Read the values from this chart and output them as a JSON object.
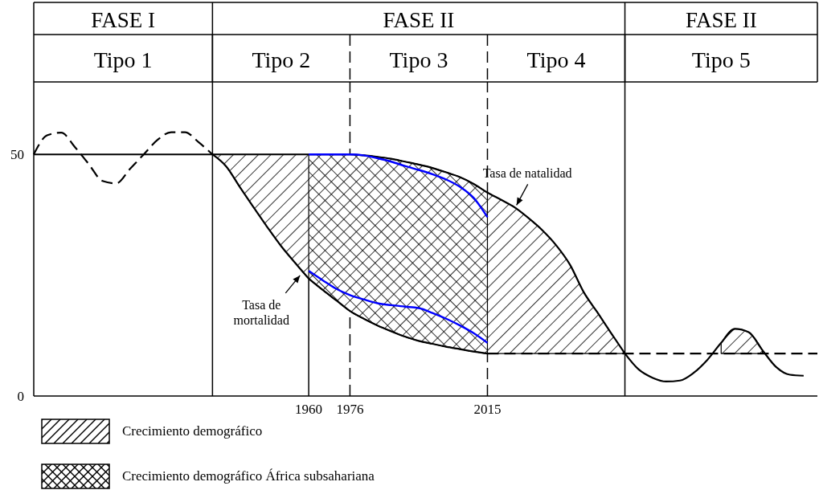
{
  "chart_data": {
    "type": "line",
    "annotations": [
      "FASE I",
      "FASE II",
      "FASE II",
      "Tipo 1",
      "Tipo 2",
      "Tipo 3",
      "Tipo 4",
      "Tipo 5",
      "Tasa de natalidad",
      "Tasa de mortalidad"
    ],
    "categories": [
      null,
      null,
      null,
      null,
      null,
      null,
      null,
      null,
      null,
      null,
      null,
      null,
      null,
      null,
      null,
      null,
      null,
      null,
      null,
      null,
      "1960",
      null,
      null,
      "1976",
      null,
      null,
      null,
      null,
      null,
      null,
      null,
      null,
      null,
      "2015",
      null,
      null,
      null,
      null,
      null,
      null,
      null,
      null,
      null,
      null,
      null,
      null,
      null,
      null,
      null,
      null,
      null,
      null,
      null,
      null,
      null,
      null,
      null,
      null
    ],
    "ylim": [
      0,
      65
    ],
    "yticks": [
      0,
      50
    ],
    "ref_lines": [
      {
        "axis": "x",
        "value": "1960",
        "line_style": "solid"
      },
      {
        "axis": "x",
        "value": "1976",
        "line_style": "dashed"
      },
      {
        "axis": "x",
        "value": "2015",
        "line_style": "dashed"
      }
    ],
    "legend": "bottom left",
    "series": [
      {
        "name": "Crecimiento demográfico",
        "color": "#000000",
        "line_style": "solid",
        "values": [
          null,
          null,
          null,
          null,
          null,
          null,
          null,
          null,
          null,
          null,
          null,
          null,
          null,
          50,
          50,
          50,
          50,
          50,
          50,
          50,
          50,
          50,
          50,
          50,
          49.8,
          49.5,
          49.1,
          48.5,
          47.9,
          47.2,
          46.3,
          45.3,
          43.9,
          42.1,
          40.6,
          39.0,
          36.8,
          34.3,
          31.2,
          27.2,
          21.5,
          17.3,
          13.0,
          8.8,
          null,
          null,
          null,
          null,
          null,
          null,
          null,
          null,
          null,
          null,
          null,
          null,
          null,
          null
        ],
        "upper": [
          null,
          null,
          null,
          null,
          null,
          null,
          null,
          null,
          null,
          null,
          null,
          null,
          null,
          50,
          50,
          50,
          50,
          50,
          50,
          50,
          50,
          50,
          50,
          50,
          49.8,
          49.5,
          49.1,
          48.5,
          47.9,
          47.2,
          46.3,
          45.3,
          43.9,
          42.1,
          40.6,
          39.0,
          36.8,
          34.3,
          31.2,
          27.2,
          21.5,
          17.3,
          13.0,
          8.8,
          null,
          null,
          null,
          null,
          null,
          null,
          null,
          null,
          null,
          null,
          null,
          null,
          null,
          null
        ],
        "lower": [
          null,
          null,
          null,
          null,
          null,
          null,
          null,
          null,
          null,
          null,
          null,
          null,
          null,
          50,
          47.5,
          43.2,
          39.0,
          34.9,
          31.0,
          27.6,
          24.3,
          22.0,
          19.8,
          17.6,
          16.0,
          14.6,
          13.4,
          12.3,
          11.4,
          10.8,
          10.2,
          9.7,
          9.2,
          8.8,
          8.8,
          8.8,
          8.8,
          8.8,
          8.8,
          8.8,
          8.8,
          8.8,
          8.8,
          8.8,
          null,
          null,
          null,
          null,
          null,
          null,
          null,
          null,
          null,
          null,
          null,
          null,
          null,
          null
        ]
      },
      {
        "name": "Crecimiento demográfico África subsahariana",
        "color": "#000000",
        "line_style": "solid",
        "values": [
          null,
          null,
          null,
          null,
          null,
          null,
          null,
          null,
          null,
          null,
          null,
          null,
          null,
          null,
          null,
          null,
          null,
          null,
          null,
          null,
          24.3,
          22.0,
          19.8,
          17.6,
          16.0,
          14.6,
          13.4,
          12.3,
          11.4,
          10.8,
          10.2,
          9.7,
          9.2,
          8.8,
          null,
          null,
          null,
          null,
          null,
          null,
          null,
          null,
          null,
          null,
          null,
          null,
          null,
          null,
          null,
          null,
          null,
          null,
          null,
          null,
          null,
          null,
          null,
          null
        ],
        "upper": [
          null,
          null,
          null,
          null,
          null,
          null,
          null,
          null,
          null,
          null,
          null,
          null,
          null,
          null,
          null,
          null,
          null,
          null,
          null,
          null,
          50,
          50,
          50,
          50,
          49.8,
          49.5,
          49.1,
          48.5,
          47.9,
          47.2,
          46.3,
          45.3,
          43.9,
          42.1,
          null,
          null,
          null,
          null,
          null,
          null,
          null,
          null,
          null,
          null,
          null,
          null,
          null,
          null,
          null,
          null,
          null,
          null,
          null,
          null,
          null,
          null,
          null,
          null
        ],
        "lower": [
          null,
          null,
          null,
          null,
          null,
          null,
          null,
          null,
          null,
          null,
          null,
          null,
          null,
          null,
          null,
          null,
          null,
          null,
          null,
          null,
          24.3,
          22.0,
          19.8,
          17.6,
          16.0,
          14.6,
          13.4,
          12.3,
          11.4,
          10.8,
          10.2,
          9.7,
          9.2,
          8.8,
          null,
          null,
          null,
          null,
          null,
          null,
          null,
          null,
          null,
          null,
          null,
          null,
          null,
          null,
          null,
          null,
          null,
          null,
          null,
          null,
          null,
          null,
          null,
          null
        ]
      },
      {
        "color": "#000000",
        "line_style": "solid",
        "values": [
          50,
          50,
          50,
          50,
          50,
          50,
          50,
          50,
          50,
          50,
          50,
          50,
          50,
          50,
          null,
          null,
          null,
          null,
          null,
          null,
          null,
          null,
          null,
          null,
          null,
          null,
          null,
          null,
          null,
          null,
          null,
          null,
          null,
          null,
          null,
          null,
          null,
          null,
          null,
          null,
          null,
          null,
          null,
          null,
          null,
          null,
          null,
          null,
          null,
          null,
          null,
          null,
          null,
          null,
          null,
          null,
          null,
          null
        ]
      },
      {
        "color": "#000000",
        "line_style": "dashed",
        "values": [
          null,
          null,
          null,
          null,
          null,
          null,
          null,
          null,
          null,
          null,
          null,
          null,
          null,
          null,
          null,
          null,
          null,
          null,
          null,
          null,
          null,
          null,
          null,
          null,
          null,
          null,
          null,
          null,
          null,
          null,
          null,
          null,
          null,
          8.8,
          8.8,
          8.8,
          8.8,
          8.8,
          8.8,
          8.8,
          8.8,
          8.8,
          8.8,
          8.8,
          8.8,
          8.8,
          8.8,
          8.8,
          8.8,
          8.8,
          8.8,
          8.8,
          8.8,
          8.8,
          8.8,
          8.8,
          8.8,
          8.8
        ]
      },
      {
        "color": "#000000",
        "line_style": "dashed",
        "values": [
          50,
          54.0,
          54.5,
          51.5,
          48,
          44.5,
          44,
          47,
          50,
          53,
          54.6,
          54.6,
          52.5,
          50,
          null,
          null,
          null,
          null,
          null,
          null,
          null,
          null,
          null,
          null,
          null,
          null,
          null,
          null,
          null,
          null,
          null,
          null,
          null,
          null,
          null,
          null,
          null,
          null,
          null,
          null,
          null,
          null,
          null,
          null,
          null,
          null,
          null,
          null,
          null,
          null,
          null,
          null,
          null,
          null,
          null,
          null,
          null,
          null
        ]
      },
      {
        "color": "#000000",
        "line_style": "solid",
        "values": [
          null,
          null,
          null,
          null,
          null,
          null,
          null,
          null,
          null,
          null,
          null,
          null,
          null,
          50,
          47.5,
          43.2,
          39.0,
          34.9,
          31.0,
          27.6,
          24.3,
          null,
          null,
          null,
          null,
          null,
          null,
          null,
          null,
          null,
          null,
          null,
          null,
          null,
          null,
          null,
          null,
          null,
          null,
          null,
          null,
          null,
          null,
          null,
          null,
          null,
          null,
          null,
          null,
          null,
          null,
          null,
          null,
          null,
          null,
          null,
          null,
          null
        ]
      },
      {
        "color": "#000000",
        "line_style": "solid",
        "values": [
          null,
          null,
          null,
          null,
          null,
          null,
          null,
          null,
          null,
          null,
          null,
          null,
          null,
          null,
          null,
          null,
          null,
          null,
          null,
          null,
          null,
          null,
          null,
          null,
          null,
          null,
          null,
          null,
          null,
          null,
          null,
          null,
          null,
          null,
          null,
          null,
          null,
          null,
          null,
          null,
          null,
          null,
          null,
          8.8,
          5.5,
          3.8,
          3.0,
          3.2,
          4.8,
          7.5,
          11.0,
          13.9,
          13.2,
          9.5,
          6.0,
          4.4,
          4.2,
          null
        ],
        "upper": [
          null,
          null,
          null,
          null,
          null,
          null,
          null,
          null,
          null,
          null,
          null,
          null,
          null,
          null,
          null,
          null,
          null,
          null,
          null,
          null,
          null,
          null,
          null,
          null,
          null,
          null,
          null,
          null,
          null,
          null,
          null,
          null,
          null,
          null,
          null,
          null,
          null,
          null,
          null,
          null,
          null,
          null,
          null,
          null,
          null,
          null,
          null,
          null,
          null,
          null,
          11.0,
          13.9,
          13.2,
          9.5,
          null,
          null,
          null,
          null
        ],
        "lower": [
          null,
          null,
          null,
          null,
          null,
          null,
          null,
          null,
          null,
          null,
          null,
          null,
          null,
          null,
          null,
          null,
          null,
          null,
          null,
          null,
          null,
          null,
          null,
          null,
          null,
          null,
          null,
          null,
          null,
          null,
          null,
          null,
          null,
          null,
          null,
          null,
          null,
          null,
          null,
          null,
          null,
          null,
          null,
          null,
          null,
          null,
          null,
          null,
          null,
          null,
          8.8,
          8.8,
          8.8,
          8.8,
          null,
          null,
          null,
          null
        ]
      },
      {
        "color": "#0000ff",
        "line_style": "solid",
        "values": [
          null,
          null,
          null,
          null,
          null,
          null,
          null,
          null,
          null,
          null,
          null,
          null,
          null,
          null,
          null,
          null,
          null,
          null,
          null,
          null,
          50,
          50,
          50,
          50,
          49.8,
          49.2,
          48.5,
          47.6,
          46.8,
          45.9,
          44.8,
          43.3,
          41.0,
          37.0,
          null,
          null,
          null,
          null,
          null,
          null,
          null,
          null,
          null,
          null,
          null,
          null,
          null,
          null,
          null,
          null,
          null,
          null,
          null,
          null,
          null,
          null,
          null,
          null
        ]
      },
      {
        "color": "#0000ff",
        "line_style": "solid",
        "values": [
          null,
          null,
          null,
          null,
          null,
          null,
          null,
          null,
          null,
          null,
          null,
          null,
          null,
          null,
          null,
          null,
          null,
          null,
          null,
          null,
          25.9,
          24.0,
          22.2,
          20.9,
          20.0,
          19.2,
          18.8,
          18.5,
          18.2,
          17.2,
          16.0,
          14.6,
          13.0,
          11.0,
          null,
          null,
          null,
          null,
          null,
          null,
          null,
          null,
          null,
          null,
          null,
          null,
          null,
          null,
          null,
          null,
          null,
          null,
          null,
          null,
          null,
          null,
          null,
          null
        ]
      }
    ]
  }
}
